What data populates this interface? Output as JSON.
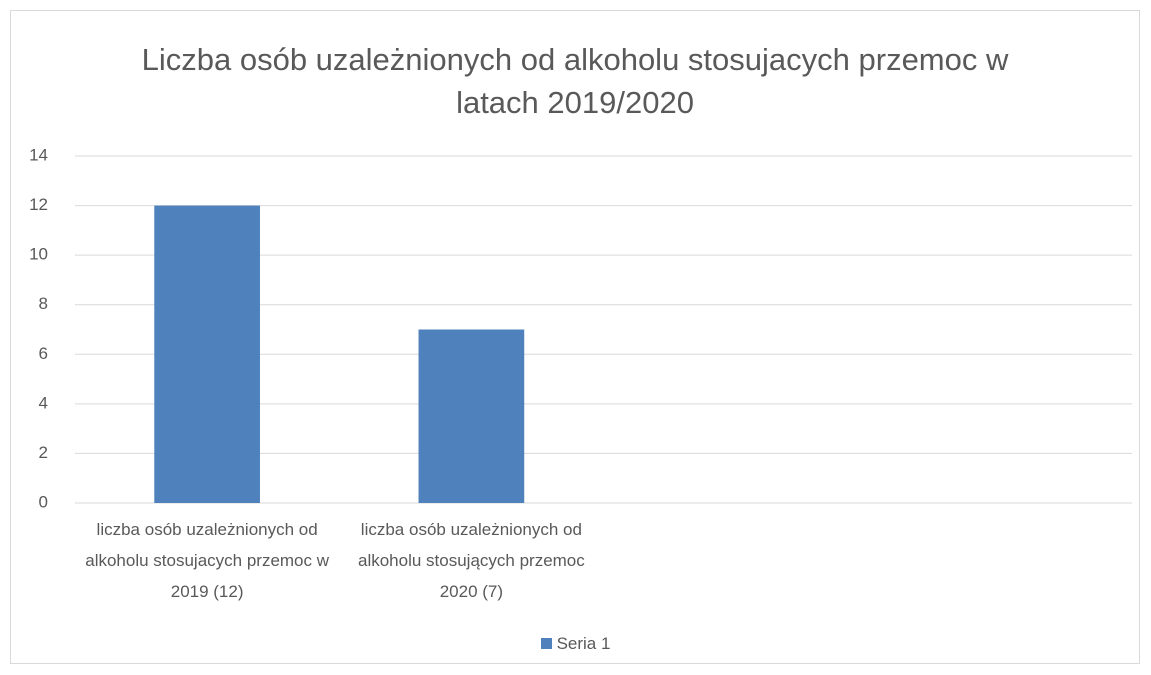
{
  "chart_data": {
    "type": "bar",
    "title": "Liczba osób uzależnionych od alkoholu stosujacych przemoc w latach 2019/2020",
    "categories": [
      "liczba osób uzależnionych od alkoholu stosujacych przemoc w 2019 (12)",
      "liczba osób uzależnionych od alkoholu stosujących przemoc 2020 (7)",
      null,
      null
    ],
    "series": [
      {
        "name": "Seria 1",
        "color": "#4f81bd",
        "values": [
          12,
          7,
          null,
          null
        ]
      }
    ],
    "ylim": [
      0,
      14
    ],
    "yticks": [
      0,
      2,
      4,
      6,
      8,
      10,
      12,
      14
    ],
    "grid": true,
    "legend": "bottom"
  }
}
